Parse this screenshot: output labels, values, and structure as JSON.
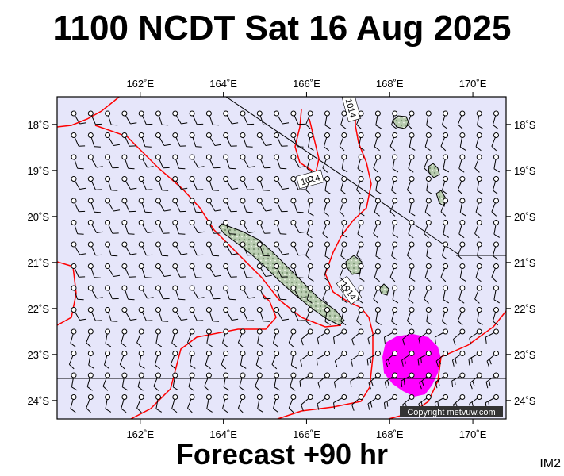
{
  "title": "1100 NCDT Sat 16 Aug 2025",
  "subtitle": "Forecast +90 hr",
  "tag": "IM2",
  "copyright": "Copyright metvuw.com",
  "map": {
    "lon_range": [
      160.0,
      170.8
    ],
    "lat_range": [
      -24.4,
      -17.4
    ],
    "lon_ticks": [
      162,
      164,
      166,
      168,
      170
    ],
    "lat_ticks": [
      -18,
      -19,
      -20,
      -21,
      -22,
      -23,
      -24
    ],
    "lon_labels": [
      "162˚E",
      "164˚E",
      "166˚E",
      "168˚E",
      "170˚E"
    ],
    "lat_labels": [
      "18˚S",
      "19˚S",
      "20˚S",
      "21˚S",
      "22˚S",
      "23˚S",
      "24˚S"
    ],
    "isobar_labels": [
      "1014",
      "1014",
      "1014"
    ],
    "rain_area": "heavy-rain-magenta",
    "colors": {
      "sea": "#e6e6fa",
      "isobar": "#ff0000",
      "rain": "#ff00ff",
      "land": "#b8ccb0",
      "barb": "#000000"
    }
  }
}
